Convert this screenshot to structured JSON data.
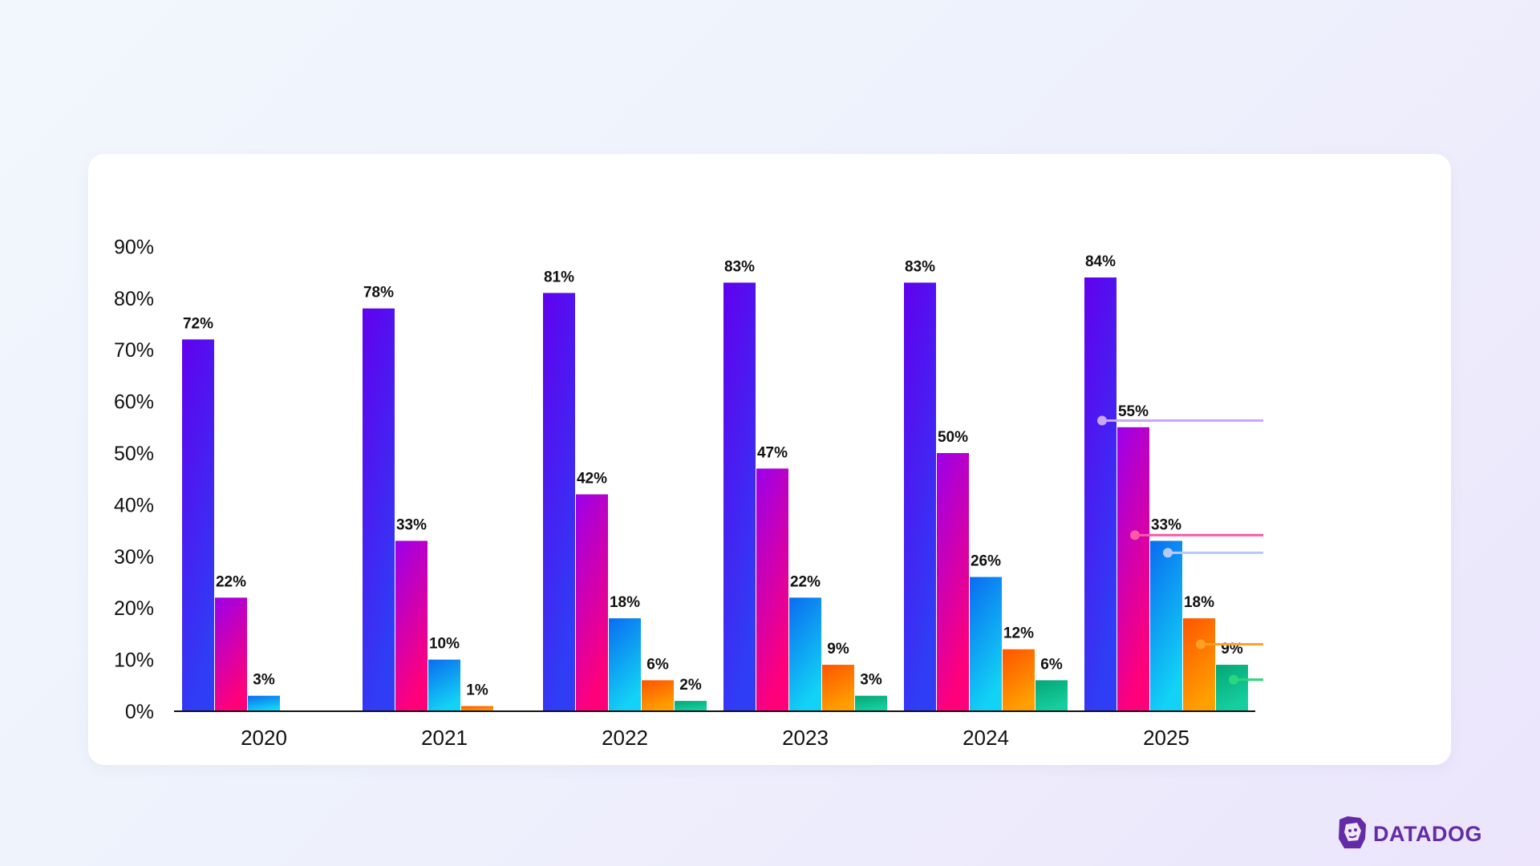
{
  "brand": {
    "name": "DATADOG",
    "color": "#632ca6"
  },
  "chart_data": {
    "type": "bar",
    "title": "",
    "xlabel": "",
    "ylabel": "",
    "ylim": [
      0,
      90
    ],
    "yticks": [
      "0%",
      "10%",
      "20%",
      "30%",
      "40%",
      "50%",
      "60%",
      "70%",
      "80%",
      "90%"
    ],
    "grid": false,
    "categories": [
      "2020",
      "2021",
      "2022",
      "2023",
      "2024",
      "2025"
    ],
    "series": [
      {
        "name": "",
        "values": [
          72,
          78,
          81,
          83,
          83,
          84
        ],
        "gradient": [
          "#6100ee",
          "#2f3df5"
        ],
        "legend_color": "#c9a7f5"
      },
      {
        "name": "",
        "values": [
          22,
          33,
          42,
          47,
          50,
          55
        ],
        "gradient": [
          "#9b00ea",
          "#ff007a"
        ],
        "legend_color": "#ff5aa5"
      },
      {
        "name": "",
        "values": [
          3,
          10,
          18,
          22,
          26,
          33
        ],
        "gradient": [
          "#0a6cf0",
          "#12d2f5"
        ],
        "legend_color": "#b7c8fb"
      },
      {
        "name": "",
        "values": [
          null,
          1,
          6,
          9,
          12,
          18
        ],
        "gradient": [
          "#ff5400",
          "#ff9f00"
        ],
        "legend_color": "#ffa126"
      },
      {
        "name": "",
        "values": [
          null,
          null,
          2,
          3,
          6,
          9
        ],
        "gradient": [
          "#05a675",
          "#16cfa0"
        ],
        "legend_color": "#2ad77e"
      }
    ],
    "value_suffix": "%"
  }
}
